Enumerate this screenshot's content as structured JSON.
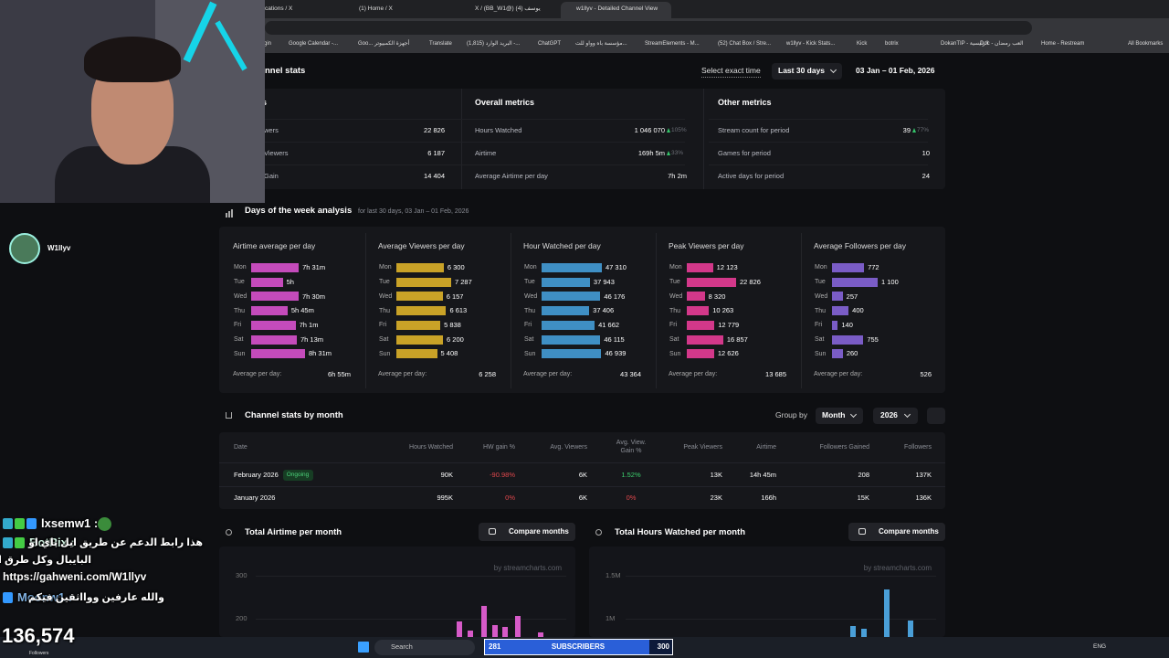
{
  "browser": {
    "tabs": [
      "cations / X",
      "(1) Home / X",
      "X / (BB_W1@) يوسف (4)",
      "w1llyv - Detailed Channel View"
    ],
    "bookmarks": [
      "gin",
      "Google Calendar -...",
      "Goo... أجهزة الكمبيوتر",
      "Translate",
      "(1,815) البريد الوارد -...",
      "ChatGPT",
      "مؤسسة باه وواو للت...",
      "StreamElements - M...",
      "(52) Chat Box / Stre...",
      "w1llyv - Kick Stats...",
      "Kick",
      "botrix",
      "DokanTIP - الرئيسية",
      "Doc - العب رمضان",
      "Home - Restream",
      "All Bookmarks"
    ]
  },
  "stream": {
    "streamer": "W1llyv",
    "chat": [
      {
        "user": "lxsemw1 :"
      },
      {
        "user": "BotRix :",
        "message": [
          "هذا رابط الدعم عن طريق ايل باي او",
          "البايبال وكل طرق الدفع :",
          "https://gahweni.com/W1llyv"
        ]
      },
      {
        "user": "Moonw1 :",
        "message": [
          "والله عارفين ووااثقين فيكم"
        ]
      }
    ],
    "followers": {
      "count": "136,574",
      "label": "Followers"
    },
    "subscribers": {
      "current": "281",
      "label": "SUBSCRIBERS",
      "goal": "300"
    }
  },
  "taskbar": {
    "search": "Search",
    "language": "ENG"
  },
  "header": {
    "title": "nnel stats",
    "select_time": "Select exact time",
    "period": "Last 30 days",
    "date_range": "03 Jan – 01 Feb, 2026"
  },
  "metrics": [
    {
      "title": "s",
      "rows": [
        {
          "label": "wers",
          "value": "22 826"
        },
        {
          "label": "Viewers",
          "value": "6 187"
        },
        {
          "label": "Gain",
          "value": "14 404"
        }
      ]
    },
    {
      "title": "Overall metrics",
      "rows": [
        {
          "label": "Hours Watched",
          "value": "1 046 070",
          "change": "105%"
        },
        {
          "label": "Airtime",
          "value": "169h 5m",
          "change": "33%"
        },
        {
          "label": "Average Airtime per day",
          "value": "7h 2m"
        }
      ]
    },
    {
      "title": "Other metrics",
      "rows": [
        {
          "label": "Stream count for period",
          "value": "39",
          "change": "77%"
        },
        {
          "label": "Games for period",
          "value": "10"
        },
        {
          "label": "Active days for period",
          "value": "24"
        }
      ]
    }
  ],
  "days_of_week": {
    "title": "Days of the week analysis",
    "subtitle": "for last 30 days, 03 Jan – 01 Feb, 2026",
    "average_label": "Average per day:",
    "charts": [
      {
        "type": "bar",
        "title": "Airtime average per day",
        "categories": [
          "Mon",
          "Tue",
          "Wed",
          "Thu",
          "Fri",
          "Sat",
          "Sun"
        ],
        "values": [
          451,
          300,
          450,
          345,
          421,
          433,
          511
        ],
        "value_labels": [
          "7h 31m",
          "5h",
          "7h 30m",
          "5h 45m",
          "7h 1m",
          "7h 13m",
          "8h 31m"
        ],
        "color": "#c44bbb",
        "average": "6h 55m"
      },
      {
        "type": "bar",
        "title": "Average Viewers per day",
        "categories": [
          "Mon",
          "Tue",
          "Wed",
          "Thu",
          "Fri",
          "Sat",
          "Sun"
        ],
        "values": [
          6300,
          7287,
          6157,
          6613,
          5838,
          6200,
          5408
        ],
        "value_labels": [
          "6 300",
          "7 287",
          "6 157",
          "6 613",
          "5 838",
          "6 200",
          "5 408"
        ],
        "color": "#c9a227",
        "average": "6 258"
      },
      {
        "type": "bar",
        "title": "Hour Watched per day",
        "categories": [
          "Mon",
          "Tue",
          "Wed",
          "Thu",
          "Fri",
          "Sat",
          "Sun"
        ],
        "values": [
          47310,
          37943,
          46176,
          37406,
          41662,
          46115,
          46939
        ],
        "value_labels": [
          "47 310",
          "37 943",
          "46 176",
          "37 406",
          "41 662",
          "46 115",
          "46 939"
        ],
        "color": "#3f8fc4",
        "average": "43 364"
      },
      {
        "type": "bar",
        "title": "Peak Viewers per day",
        "categories": [
          "Mon",
          "Tue",
          "Wed",
          "Thu",
          "Fri",
          "Sat",
          "Sun"
        ],
        "values": [
          12123,
          22826,
          8320,
          10263,
          12779,
          16857,
          12626
        ],
        "value_labels": [
          "12 123",
          "22 826",
          "8 320",
          "10 263",
          "12 779",
          "16 857",
          "12 626"
        ],
        "color": "#d3388a",
        "average": "13 685"
      },
      {
        "type": "bar",
        "title": "Average Followers per day",
        "categories": [
          "Mon",
          "Tue",
          "Wed",
          "Thu",
          "Fri",
          "Sat",
          "Sun"
        ],
        "values": [
          772,
          1100,
          257,
          400,
          140,
          755,
          260
        ],
        "value_labels": [
          "772",
          "1 100",
          "257",
          "400",
          "140",
          "755",
          "260"
        ],
        "color": "#7a5cc6",
        "average": "526"
      }
    ]
  },
  "monthly": {
    "title": "Channel stats by month",
    "group_by_label": "Group by",
    "group_by": "Month",
    "year": "2026",
    "columns": [
      "Date",
      "Hours Watched",
      "HW gain %",
      "Avg. Viewers",
      "Avg. View. Gain %",
      "Peak Viewers",
      "Airtime",
      "Followers Gained",
      "Followers"
    ],
    "rows": [
      {
        "date": "February 2026",
        "status": "Ongoing",
        "cells": [
          "90K",
          "-90.98%",
          "6K",
          "1.52%",
          "13K",
          "14h 45m",
          "208",
          "137K"
        ]
      },
      {
        "date": "January 2026",
        "cells": [
          "995K",
          "0%",
          "6K",
          "0%",
          "23K",
          "166h",
          "15K",
          "136K"
        ]
      }
    ]
  },
  "bottom_charts": [
    {
      "type": "bar",
      "title": "Total Airtime per month",
      "button": "Compare months",
      "watermark": "by streamcharts.com",
      "color": "#d65ac8",
      "ylim": [
        0,
        320
      ],
      "yticks": [
        200,
        300
      ],
      "values": [
        193,
        172,
        230,
        186,
        181,
        207,
        168
      ]
    },
    {
      "type": "bar",
      "title": "Total Hours Watched per month",
      "button": "Compare months",
      "watermark": "by streamcharts.com",
      "color": "#4a9fd8",
      "ylim": [
        0,
        1600000
      ],
      "yticks": [
        {
          "value": 1000000,
          "label": "1M"
        },
        {
          "value": 1500000,
          "label": "1.5M"
        }
      ],
      "values": [
        920000,
        880000,
        1340000,
        980000
      ]
    }
  ]
}
